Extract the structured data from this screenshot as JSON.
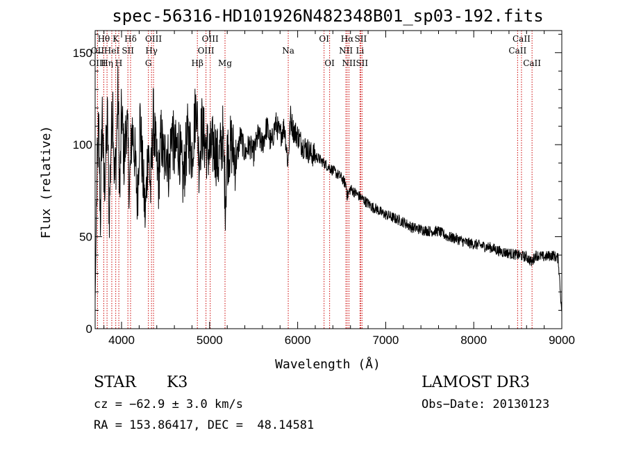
{
  "chart_data": {
    "type": "line",
    "title": "spec-56316-HD101926N482348B01_sp03-192.fits",
    "xlabel": "Wavelength (Å)",
    "ylabel": "Flux (relative)",
    "xlim": [
      3700,
      9000
    ],
    "ylim": [
      0,
      162
    ],
    "xticks": [
      4000,
      5000,
      6000,
      7000,
      8000,
      9000
    ],
    "yticks": [
      0,
      50,
      100,
      150
    ],
    "series": [
      {
        "name": "spectrum",
        "x": [
          3700,
          3720,
          3740,
          3760,
          3780,
          3800,
          3820,
          3840,
          3860,
          3880,
          3900,
          3920,
          3940,
          3960,
          3980,
          4000,
          4030,
          4060,
          4090,
          4120,
          4150,
          4180,
          4210,
          4240,
          4270,
          4300,
          4330,
          4360,
          4390,
          4420,
          4450,
          4480,
          4510,
          4540,
          4570,
          4600,
          4650,
          4700,
          4750,
          4800,
          4850,
          4880,
          4910,
          4950,
          5000,
          5050,
          5100,
          5150,
          5180,
          5200,
          5250,
          5300,
          5350,
          5400,
          5450,
          5500,
          5550,
          5600,
          5650,
          5700,
          5750,
          5800,
          5850,
          5890,
          5920,
          5950,
          6000,
          6050,
          6100,
          6150,
          6200,
          6250,
          6300,
          6350,
          6400,
          6450,
          6500,
          6550,
          6563,
          6600,
          6650,
          6700,
          6750,
          6800,
          6850,
          6900,
          6950,
          7000,
          7100,
          7200,
          7300,
          7400,
          7500,
          7600,
          7700,
          7800,
          7900,
          8000,
          8100,
          8200,
          8300,
          8400,
          8500,
          8600,
          8660,
          8700,
          8800,
          8900,
          8960,
          9000
        ],
        "y": [
          15,
          80,
          110,
          60,
          120,
          75,
          90,
          115,
          60,
          100,
          125,
          80,
          95,
          130,
          70,
          120,
          90,
          115,
          75,
          110,
          95,
          70,
          115,
          85,
          60,
          100,
          75,
          115,
          95,
          80,
          105,
          90,
          100,
          85,
          110,
          95,
          100,
          80,
          105,
          95,
          125,
          90,
          110,
          100,
          95,
          100,
          90,
          105,
          70,
          95,
          100,
          90,
          105,
          95,
          100,
          95,
          105,
          100,
          110,
          100,
          112,
          105,
          110,
          90,
          115,
          108,
          105,
          100,
          98,
          95,
          94,
          92,
          90,
          88,
          86,
          84,
          82,
          78,
          72,
          76,
          74,
          72,
          70,
          68,
          66,
          65,
          63,
          62,
          60,
          58,
          55,
          54,
          53,
          53,
          50,
          49,
          47,
          46,
          45,
          44,
          42,
          41,
          40,
          39,
          36,
          40,
          39,
          40,
          38,
          8
        ]
      }
    ],
    "lines": [
      {
        "label": "Hθ",
        "wl": 3798,
        "row": 0
      },
      {
        "label": "OII",
        "wl": 3727,
        "row": 1
      },
      {
        "label": "OIII",
        "wl": 3727,
        "row": 2
      },
      {
        "label": "Hη",
        "wl": 3835,
        "row": 2
      },
      {
        "label": "HeI",
        "wl": 3889,
        "row": 1
      },
      {
        "label": "K",
        "wl": 3934,
        "row": 0
      },
      {
        "label": "H",
        "wl": 3969,
        "row": 2
      },
      {
        "label": "SII",
        "wl": 4072,
        "row": 1
      },
      {
        "label": "Hδ",
        "wl": 4102,
        "row": 0
      },
      {
        "label": "OIII",
        "wl": 4363,
        "row": 0
      },
      {
        "label": "Hγ",
        "wl": 4340,
        "row": 1
      },
      {
        "label": "G",
        "wl": 4305,
        "row": 2
      },
      {
        "label": "Hβ",
        "wl": 4861,
        "row": 2
      },
      {
        "label": "OIII",
        "wl": 4959,
        "row": 1
      },
      {
        "label": "OIII",
        "wl": 5007,
        "row": 0
      },
      {
        "label": "Mg",
        "wl": 5175,
        "row": 2
      },
      {
        "label": "Na",
        "wl": 5893,
        "row": 1
      },
      {
        "label": "OI",
        "wl": 6300,
        "row": 0
      },
      {
        "label": "OI",
        "wl": 6363,
        "row": 2
      },
      {
        "label": "NII",
        "wl": 6548,
        "row": 1
      },
      {
        "label": "NII",
        "wl": 6583,
        "row": 2
      },
      {
        "label": "Hα",
        "wl": 6563,
        "row": 0
      },
      {
        "label": "SII",
        "wl": 6716,
        "row": 0
      },
      {
        "label": "Li",
        "wl": 6708,
        "row": 1
      },
      {
        "label": "SII",
        "wl": 6731,
        "row": 2
      },
      {
        "label": "CaII",
        "wl": 8498,
        "row": 1
      },
      {
        "label": "CaII",
        "wl": 8542,
        "row": 0
      },
      {
        "label": "CaII",
        "wl": 8662,
        "row": 2
      }
    ]
  },
  "footer": {
    "class_label": "STAR",
    "subclass": "K3",
    "survey": "LAMOST DR3",
    "cz": "cz = −62.9 ± 3.0 km/s",
    "obs_date": "Obs−Date: 20130123",
    "radec": "RA = 153.86417, DEC =  48.14581"
  },
  "colors": {
    "line_marker": "#cc0000",
    "spectrum": "#000000"
  }
}
